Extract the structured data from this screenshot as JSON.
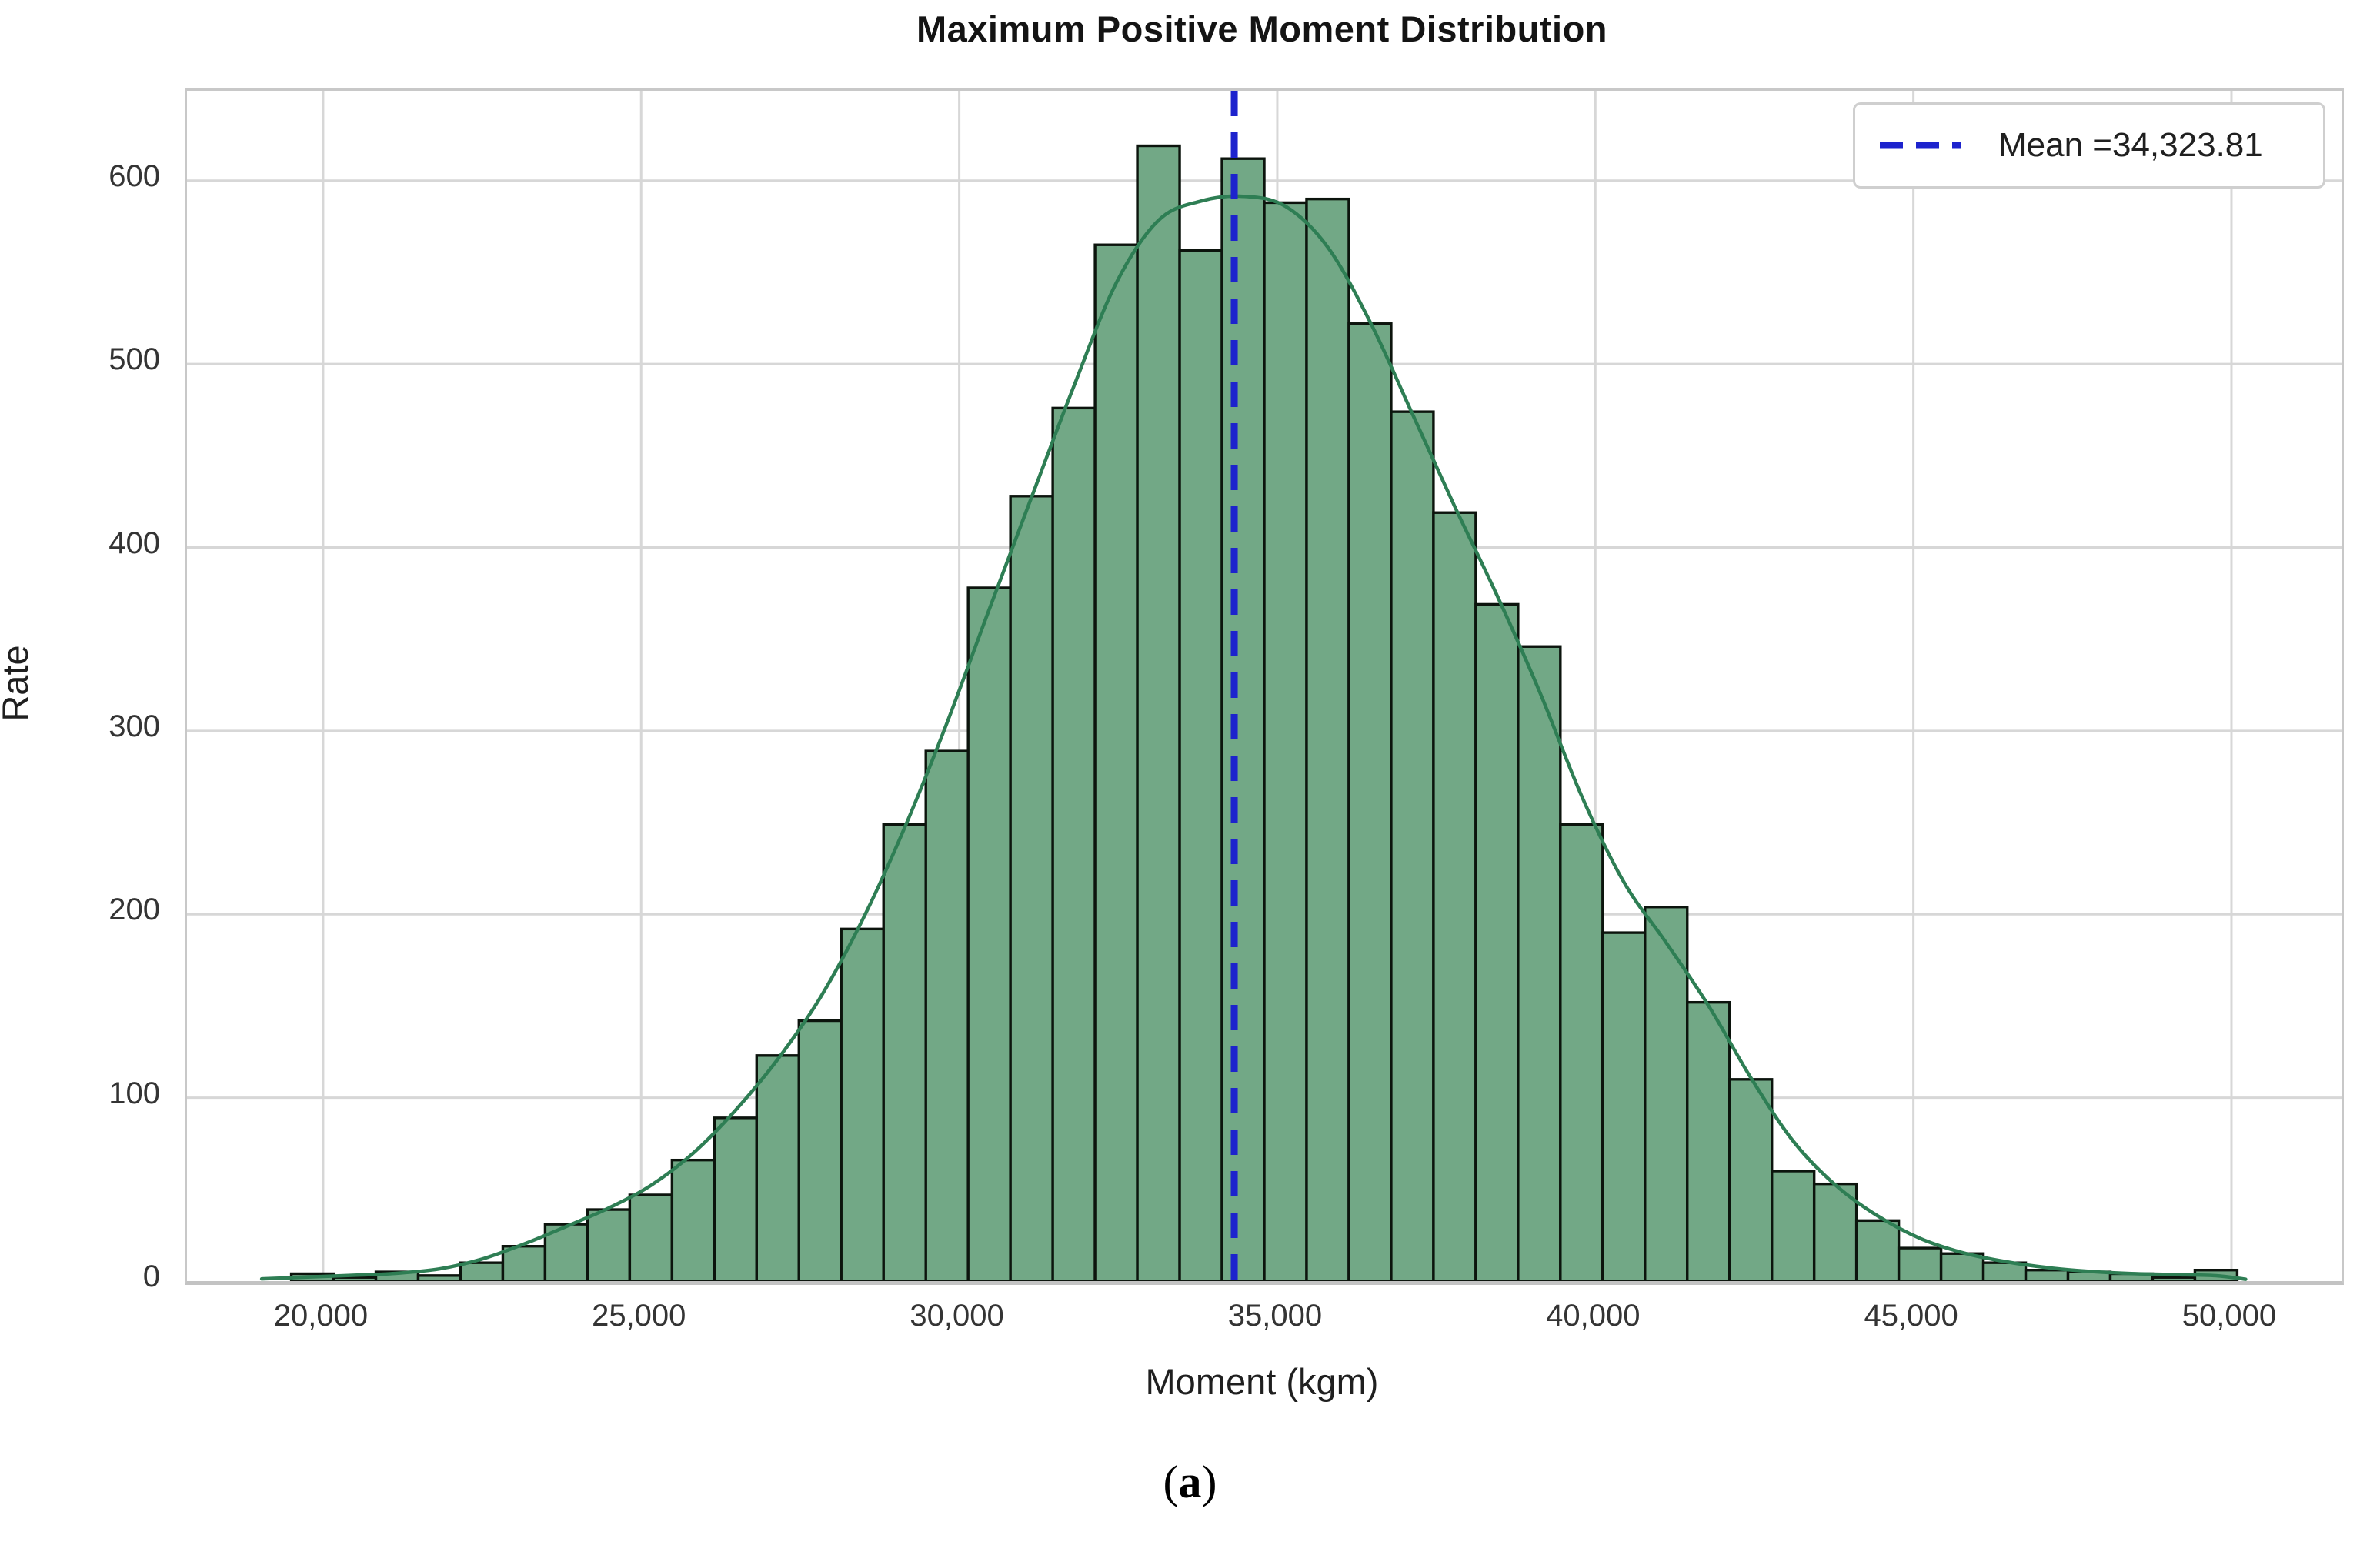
{
  "figure": {
    "caption": {
      "open": "(",
      "letter": "a",
      "close": ")"
    }
  },
  "chart_data": {
    "type": "histogram",
    "title": "Maximum Positive Moment Distribution",
    "xlabel": "Moment (kgm)",
    "ylabel": "Rate",
    "x_ticks": [
      "20,000",
      "25,000",
      "30,000",
      "35,000",
      "40,000",
      "45,000",
      "50,000"
    ],
    "x_tick_values": [
      20000,
      25000,
      30000,
      35000,
      40000,
      45000,
      50000
    ],
    "y_ticks": [
      0,
      100,
      200,
      300,
      400,
      500,
      600
    ],
    "xlim": [
      17860,
      51730
    ],
    "ylim": [
      0,
      649
    ],
    "grid": true,
    "bin_start": 19500,
    "bin_width": 665,
    "bin_counts": [
      4,
      2,
      5,
      3,
      10,
      19,
      31,
      39,
      47,
      66,
      89,
      123,
      142,
      192,
      249,
      289,
      378,
      428,
      476,
      565,
      619,
      562,
      612,
      588,
      590,
      522,
      474,
      419,
      369,
      346,
      249,
      190,
      204,
      152,
      110,
      60,
      53,
      33,
      18,
      15,
      10,
      6,
      5,
      4,
      2,
      6
    ],
    "kde_peak_value": 592,
    "mean": {
      "value": 34323.81,
      "label": "Mean =34,323.81"
    },
    "legend": {
      "position": "top-right",
      "entries": [
        {
          "label": "Mean =34,323.81",
          "color": "#1d23cd",
          "style": "dashed"
        }
      ]
    },
    "colors": {
      "bar_fill": "#72a886",
      "bar_edge": "#0c140d",
      "kde_line": "#2e7e54",
      "mean_line": "#1d23cd",
      "grid_line": "#d7d7d7",
      "plot_border": "#c8c8c8"
    }
  }
}
